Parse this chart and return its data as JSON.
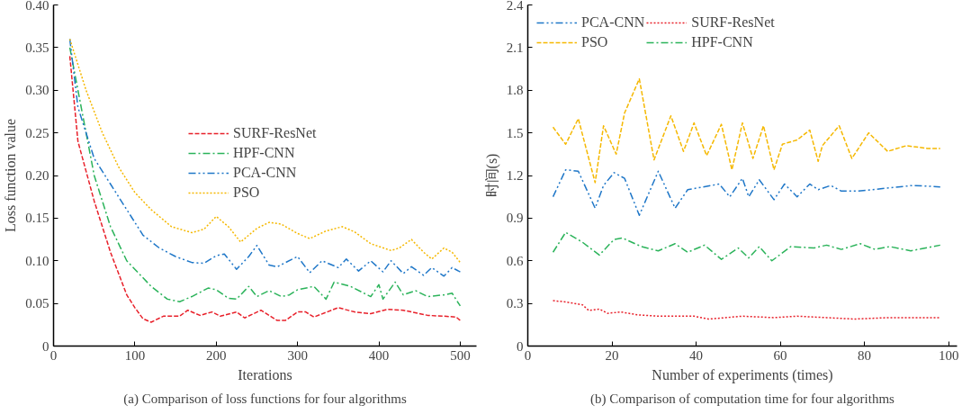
{
  "chart_data": [
    {
      "type": "line",
      "xlabel": "Iterations",
      "ylabel": "Loss function value",
      "annotations": [
        "(a) Comparison of loss functions for four algorithms"
      ],
      "legend": "right",
      "grid": false,
      "xlim": [
        0,
        520
      ],
      "ylim": [
        0,
        0.4
      ],
      "xticks": [
        0,
        100,
        200,
        300,
        400,
        500
      ],
      "yticks": [
        {
          "value": 0,
          "label": "0"
        },
        {
          "value": 0.05,
          "label": "0.05"
        },
        {
          "value": 0.1,
          "label": "0.10"
        },
        {
          "value": 0.15,
          "label": "0.15"
        },
        {
          "value": 0.2,
          "label": "0.20"
        },
        {
          "value": 0.25,
          "label": "0.25"
        },
        {
          "value": 0.3,
          "label": "0.30"
        },
        {
          "value": 0.35,
          "label": "0.35"
        },
        {
          "value": 0.4,
          "label": "0.40"
        }
      ],
      "series": [
        {
          "name": "SURF-ResNet",
          "color": "#e8202a",
          "line_style": "dashed",
          "x": [
            20,
            30,
            50,
            70,
            90,
            100,
            110,
            120,
            135,
            155,
            165,
            180,
            195,
            205,
            225,
            235,
            255,
            275,
            285,
            300,
            310,
            320,
            350,
            370,
            390,
            410,
            430,
            460,
            480,
            495,
            500
          ],
          "values": [
            0.34,
            0.24,
            0.17,
            0.11,
            0.06,
            0.045,
            0.032,
            0.028,
            0.035,
            0.035,
            0.042,
            0.036,
            0.04,
            0.035,
            0.04,
            0.033,
            0.042,
            0.03,
            0.03,
            0.04,
            0.04,
            0.034,
            0.045,
            0.04,
            0.038,
            0.043,
            0.042,
            0.036,
            0.035,
            0.034,
            0.03
          ]
        },
        {
          "name": "HPF-CNN",
          "color": "#2bb35a",
          "line_style": "dashdot",
          "x": [
            20,
            30,
            50,
            70,
            90,
            100,
            120,
            140,
            155,
            170,
            190,
            200,
            215,
            225,
            240,
            250,
            265,
            280,
            290,
            300,
            320,
            335,
            345,
            365,
            390,
            400,
            405,
            420,
            430,
            445,
            460,
            480,
            490,
            500
          ],
          "values": [
            0.35,
            0.3,
            0.2,
            0.14,
            0.1,
            0.09,
            0.07,
            0.055,
            0.052,
            0.058,
            0.068,
            0.066,
            0.056,
            0.055,
            0.07,
            0.058,
            0.065,
            0.058,
            0.06,
            0.066,
            0.07,
            0.055,
            0.075,
            0.07,
            0.058,
            0.072,
            0.055,
            0.075,
            0.06,
            0.065,
            0.058,
            0.06,
            0.062,
            0.047
          ]
        },
        {
          "name": "PCA-CNN",
          "color": "#1f77c8",
          "line_style": "dashdotdot",
          "x": [
            20,
            30,
            50,
            70,
            90,
            110,
            130,
            150,
            170,
            185,
            200,
            210,
            225,
            240,
            250,
            265,
            275,
            300,
            315,
            330,
            350,
            360,
            375,
            390,
            405,
            415,
            430,
            440,
            455,
            465,
            480,
            490,
            500
          ],
          "values": [
            0.36,
            0.28,
            0.22,
            0.19,
            0.16,
            0.13,
            0.115,
            0.105,
            0.098,
            0.097,
            0.106,
            0.108,
            0.09,
            0.105,
            0.118,
            0.095,
            0.093,
            0.105,
            0.086,
            0.1,
            0.092,
            0.102,
            0.088,
            0.1,
            0.087,
            0.1,
            0.085,
            0.093,
            0.083,
            0.092,
            0.082,
            0.092,
            0.087
          ]
        },
        {
          "name": "PSO",
          "color": "#f5b800",
          "line_style": "dotted",
          "x": [
            20,
            40,
            60,
            80,
            100,
            120,
            145,
            170,
            185,
            200,
            215,
            230,
            250,
            265,
            280,
            300,
            315,
            335,
            355,
            370,
            390,
            415,
            425,
            440,
            455,
            465,
            480,
            490,
            500
          ],
          "values": [
            0.36,
            0.3,
            0.25,
            0.21,
            0.18,
            0.16,
            0.14,
            0.133,
            0.137,
            0.152,
            0.14,
            0.122,
            0.138,
            0.145,
            0.143,
            0.132,
            0.126,
            0.135,
            0.14,
            0.134,
            0.12,
            0.112,
            0.115,
            0.125,
            0.11,
            0.102,
            0.115,
            0.11,
            0.098
          ]
        }
      ]
    },
    {
      "type": "line",
      "xlabel": "Number of experiments (times)",
      "ylabel": "时间(s)",
      "annotations": [
        "(b) Comparison of computation time for four algorithms"
      ],
      "legend": "top left",
      "grid": false,
      "xlim": [
        0,
        102
      ],
      "ylim": [
        0,
        2.4
      ],
      "xticks": [
        0,
        20,
        40,
        60,
        80,
        100
      ],
      "yticks": [
        0,
        0.3,
        0.6,
        0.9,
        1.2,
        1.5,
        1.8,
        2.1,
        2.4
      ],
      "series": [
        {
          "name": "PCA-CNN",
          "color": "#1f77c8",
          "line_style": "dashdotdot",
          "x": [
            6,
            9,
            12,
            16,
            18,
            20.5,
            23,
            26.5,
            31,
            35,
            38,
            45.5,
            48,
            51,
            52.5,
            55,
            58.5,
            61,
            64,
            67,
            69,
            72,
            74.5,
            78.5,
            85,
            91.5,
            98
          ],
          "values": [
            1.05,
            1.24,
            1.23,
            0.97,
            1.13,
            1.22,
            1.18,
            0.92,
            1.23,
            0.97,
            1.1,
            1.14,
            1.05,
            1.18,
            1.05,
            1.17,
            1.03,
            1.14,
            1.05,
            1.14,
            1.1,
            1.13,
            1.09,
            1.09,
            1.11,
            1.13,
            1.12
          ]
        },
        {
          "name": "SURF-ResNet",
          "color": "#e8202a",
          "line_style": "dotted",
          "x": [
            6,
            9,
            13,
            14.5,
            17,
            19,
            22,
            26,
            31,
            39.5,
            43,
            51,
            58.5,
            64,
            71,
            77.5,
            86,
            98
          ],
          "values": [
            0.32,
            0.31,
            0.29,
            0.25,
            0.26,
            0.23,
            0.24,
            0.22,
            0.21,
            0.21,
            0.19,
            0.21,
            0.2,
            0.21,
            0.2,
            0.19,
            0.2,
            0.2
          ]
        },
        {
          "name": "PSO",
          "color": "#f5b800",
          "line_style": "dashed",
          "x": [
            6,
            9,
            12,
            16,
            18,
            21,
            23,
            26.5,
            30,
            34,
            37,
            39.5,
            42.5,
            46,
            48.5,
            51,
            53.5,
            56,
            58.5,
            60.5,
            64,
            67,
            69,
            70,
            74,
            77,
            81,
            85.5,
            90,
            95,
            98
          ],
          "values": [
            1.54,
            1.42,
            1.6,
            1.15,
            1.55,
            1.35,
            1.64,
            1.88,
            1.31,
            1.62,
            1.37,
            1.57,
            1.34,
            1.56,
            1.24,
            1.57,
            1.32,
            1.55,
            1.24,
            1.42,
            1.45,
            1.52,
            1.3,
            1.41,
            1.55,
            1.32,
            1.5,
            1.37,
            1.41,
            1.39,
            1.39
          ]
        },
        {
          "name": "HPF-CNN",
          "color": "#2bb35a",
          "line_style": "dashdot",
          "x": [
            6,
            9,
            13,
            17,
            20.5,
            22.5,
            27,
            31,
            35,
            38,
            42,
            46,
            50,
            52.5,
            55,
            58,
            62.5,
            68,
            71,
            74.5,
            79,
            82.5,
            86,
            91,
            98
          ],
          "values": [
            0.66,
            0.8,
            0.73,
            0.64,
            0.75,
            0.76,
            0.7,
            0.67,
            0.72,
            0.66,
            0.71,
            0.61,
            0.69,
            0.62,
            0.7,
            0.6,
            0.7,
            0.69,
            0.71,
            0.68,
            0.72,
            0.68,
            0.7,
            0.67,
            0.71
          ]
        }
      ]
    }
  ]
}
